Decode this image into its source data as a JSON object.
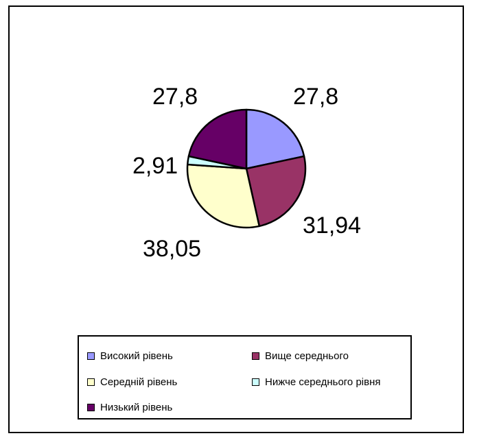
{
  "chart_data": {
    "type": "pie",
    "title": "",
    "slices": [
      {
        "name": "Високий рівень",
        "value": 27.8,
        "label": "27,8",
        "color": "#9999ff"
      },
      {
        "name": "Вище середнього",
        "value": 31.94,
        "label": "31,94",
        "color": "#993366"
      },
      {
        "name": "Середній рівень",
        "value": 38.05,
        "label": "38,05",
        "color": "#ffffcc"
      },
      {
        "name": "Нижче середнього рівня",
        "value": 2.91,
        "label": "2,91",
        "color": "#ccffff"
      },
      {
        "name": "Низький рівень",
        "value": 27.8,
        "label": "27,8",
        "color": "#660066"
      }
    ],
    "legend_position": "bottom"
  }
}
